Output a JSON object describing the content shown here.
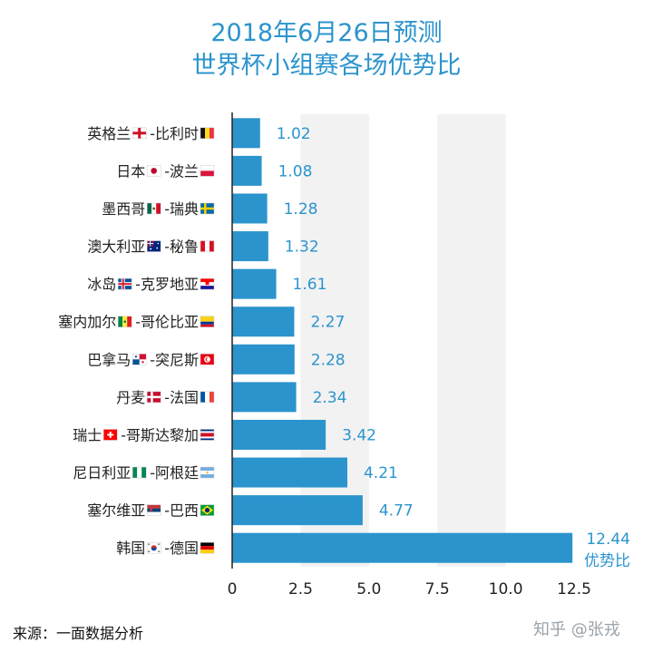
{
  "title_line1": "2018年6月26日预测",
  "title_line2": "世界杯小组赛各场优势比",
  "source": "来源：一面数据分析",
  "watermark": "知乎 @张戎",
  "colors": {
    "bar": "#2b94cd",
    "band": "#f2f2f2",
    "title": "#2b94cd"
  },
  "chart_data": {
    "type": "bar",
    "orientation": "horizontal",
    "categories": [
      {
        "team1": "英格兰",
        "flag1": "england-flag",
        "team2": "比利时",
        "flag2": "belgium-flag"
      },
      {
        "team1": "日本",
        "flag1": "japan-flag",
        "team2": "波兰",
        "flag2": "poland-flag"
      },
      {
        "team1": "墨西哥",
        "flag1": "mexico-flag",
        "team2": "瑞典",
        "flag2": "sweden-flag"
      },
      {
        "team1": "澳大利亚",
        "flag1": "australia-flag",
        "team2": "秘鲁",
        "flag2": "peru-flag"
      },
      {
        "team1": "冰岛",
        "flag1": "iceland-flag",
        "team2": "克罗地亚",
        "flag2": "croatia-flag"
      },
      {
        "team1": "塞内加尔",
        "flag1": "senegal-flag",
        "team2": "哥伦比亚",
        "flag2": "colombia-flag"
      },
      {
        "team1": "巴拿马",
        "flag1": "panama-flag",
        "team2": "突尼斯",
        "flag2": "tunisia-flag"
      },
      {
        "team1": "丹麦",
        "flag1": "denmark-flag",
        "team2": "法国",
        "flag2": "france-flag"
      },
      {
        "team1": "瑞士",
        "flag1": "switzerland-flag",
        "team2": "哥斯达黎加",
        "flag2": "costa-rica-flag"
      },
      {
        "team1": "尼日利亚",
        "flag1": "nigeria-flag",
        "team2": "阿根廷",
        "flag2": "argentina-flag"
      },
      {
        "team1": "塞尔维亚",
        "flag1": "serbia-flag",
        "team2": "巴西",
        "flag2": "brazil-flag"
      },
      {
        "team1": "韩国",
        "flag1": "korea-flag",
        "team2": "德国",
        "flag2": "germany-flag"
      }
    ],
    "separator": " -",
    "values": [
      1.02,
      1.08,
      1.28,
      1.32,
      1.61,
      2.27,
      2.28,
      2.34,
      3.42,
      4.21,
      4.77,
      12.44
    ],
    "value_labels": [
      "1.02",
      "1.08",
      "1.28",
      "1.32",
      "1.61",
      "2.27",
      "2.28",
      "2.34",
      "3.42",
      "4.21",
      "4.77",
      "12.44"
    ],
    "last_value_suffix": "优势比",
    "xlim": [
      0,
      12.5
    ],
    "xticks": [
      0,
      2.5,
      5.0,
      7.5,
      10.0,
      12.5
    ],
    "xtick_labels": [
      "0",
      "2.5",
      "5.0",
      "7.5",
      "10.0",
      "12.5"
    ],
    "xlabel": "",
    "ylabel": "",
    "grid": "alternating vertical bands"
  }
}
